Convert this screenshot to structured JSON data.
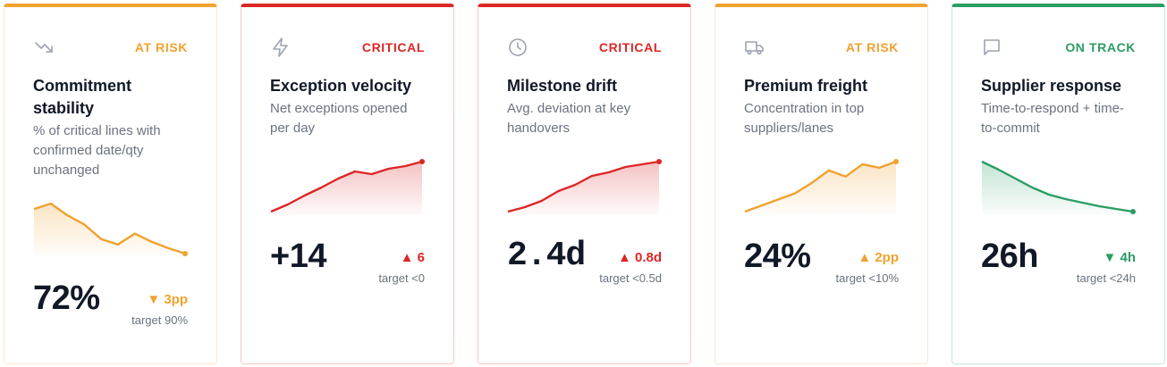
{
  "cards": [
    {
      "status": "AT RISK",
      "color": "#f0a22e",
      "title": "Commitment stability",
      "description": "% of critical lines with confirmed date/qty unchanged",
      "value": "72%",
      "delta": "▼ 3pp",
      "target": "target 90%",
      "sparkline": [
        53,
        59,
        46,
        36,
        20,
        14,
        26,
        17,
        10,
        4
      ]
    },
    {
      "status": "CRITICAL",
      "color": "#dc2626",
      "title": "Exception velocity",
      "description": "Net exceptions opened per day",
      "value": "+14",
      "delta": "▲ 6",
      "target": "target <0",
      "sparkline": [
        0,
        8,
        18,
        27,
        37,
        45,
        42,
        48,
        51,
        56
      ]
    },
    {
      "status": "CRITICAL",
      "color": "#dc2626",
      "title": "Milestone drift",
      "description": "Avg. deviation at key handovers",
      "value": "2.4d",
      "delta": "▲ 0.8d",
      "target": "target <0.5d",
      "sparkline": [
        0,
        5,
        12,
        23,
        30,
        40,
        44,
        50,
        53,
        56
      ]
    },
    {
      "status": "AT RISK",
      "color": "#f0a22e",
      "title": "Premium freight",
      "description": "Concentration in top suppliers/lanes",
      "value": "24%",
      "delta": "▲ 2pp",
      "target": "target <10%",
      "sparkline": [
        0,
        7,
        14,
        21,
        33,
        47,
        40,
        54,
        50,
        57
      ]
    },
    {
      "status": "ON TRACK",
      "color": "#2a9d63",
      "title": "Supplier response",
      "description": "Time-to-respond + time-to-commit",
      "value": "26h",
      "delta": "▼ 4h",
      "target": "target <24h",
      "sparkline": [
        56,
        47,
        37,
        27,
        19,
        14,
        10,
        6,
        3,
        0
      ]
    }
  ]
}
